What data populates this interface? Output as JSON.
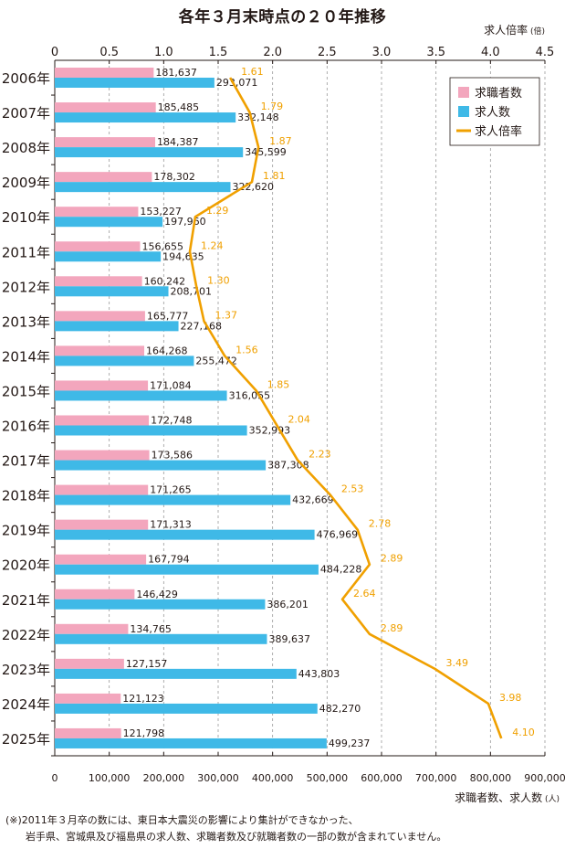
{
  "title": "各年３月末時点の２０年推移",
  "top_axis_label": "求人倍率",
  "top_axis_unit": "(倍)",
  "bottom_axis_label": "求職者数、求人数",
  "bottom_axis_unit": "(人)",
  "footnote": [
    "(※)2011年３月卒の数には、東日本大震災の影響により集計ができなかった、",
    "岩手県、宮城県及び福島県の求人数、求職者数及び就職者数の一部の数が含まれていません。"
  ],
  "colors": {
    "seekers": "#f3a6bd",
    "openings": "#3fb9e7",
    "ratio": "#f0a000",
    "ratio_label": "#f0a000",
    "grid": "#9a9a9a",
    "text": "#231815"
  },
  "chart_data": {
    "type": "bar",
    "orientation": "horizontal",
    "categories": [
      "2006年",
      "2007年",
      "2008年",
      "2009年",
      "2010年",
      "2011年",
      "2012年",
      "2013年",
      "2014年",
      "2015年",
      "2016年",
      "2017年",
      "2018年",
      "2019年",
      "2020年",
      "2021年",
      "2022年",
      "2023年",
      "2024年",
      "2025年"
    ],
    "series": [
      {
        "name": "求職者数",
        "color": "#f3a6bd",
        "values": [
          181637,
          185485,
          184387,
          178302,
          153227,
          156655,
          160242,
          165777,
          164268,
          171084,
          172748,
          173586,
          171265,
          171313,
          167794,
          146429,
          134765,
          127157,
          121123,
          121798
        ],
        "labels": [
          "181,637",
          "185,485",
          "184,387",
          "178,302",
          "153,227",
          "156,655",
          "160,242",
          "165,777",
          "164,268",
          "171,084",
          "172,748",
          "173,586",
          "171,265",
          "171,313",
          "167,794",
          "146,429",
          "134,765",
          "127,157",
          "121,123",
          "121,798"
        ]
      },
      {
        "name": "求人数",
        "color": "#3fb9e7",
        "values": [
          293071,
          332148,
          345599,
          322620,
          197960,
          194635,
          208701,
          227168,
          255472,
          316055,
          352993,
          387308,
          432669,
          476969,
          484228,
          386201,
          389637,
          443803,
          482270,
          499237
        ],
        "labels": [
          "293,071",
          "332,148",
          "345,599",
          "322,620",
          "197,960",
          "194,635",
          "208,701",
          "227,168",
          "255,472",
          "316,055",
          "352,993",
          "387,308",
          "432,669",
          "476,969",
          "484,228",
          "386,201",
          "389,637",
          "443,803",
          "482,270",
          "499,237"
        ]
      }
    ],
    "line_series": {
      "name": "求人倍率",
      "color": "#f0a000",
      "axis": "top",
      "values": [
        1.61,
        1.79,
        1.87,
        1.81,
        1.29,
        1.24,
        1.3,
        1.37,
        1.56,
        1.85,
        2.04,
        2.23,
        2.53,
        2.78,
        2.89,
        2.64,
        2.89,
        3.49,
        3.98,
        4.1
      ],
      "labels": [
        "1.61",
        "1.79",
        "1.87",
        "1.81",
        "1.29",
        "1.24",
        "1.30",
        "1.37",
        "1.56",
        "1.85",
        "2.04",
        "2.23",
        "2.53",
        "2.78",
        "2.89",
        "2.64",
        "2.89",
        "3.49",
        "3.98",
        "4.10"
      ]
    },
    "bottom_axis": {
      "range": [
        0,
        900000
      ],
      "ticks": [
        "0",
        "100,000",
        "200,000",
        "300,000",
        "400,000",
        "500,000",
        "600,000",
        "700,000",
        "800,000",
        "900,000"
      ]
    },
    "top_axis": {
      "range": [
        0,
        4.5
      ],
      "ticks": [
        "0",
        "0.5",
        "1.0",
        "1.5",
        "2.0",
        "2.5",
        "3.0",
        "3.5",
        "4.0",
        "4.5"
      ]
    },
    "grid": "vertical dashed",
    "legend_position": "top-right"
  }
}
